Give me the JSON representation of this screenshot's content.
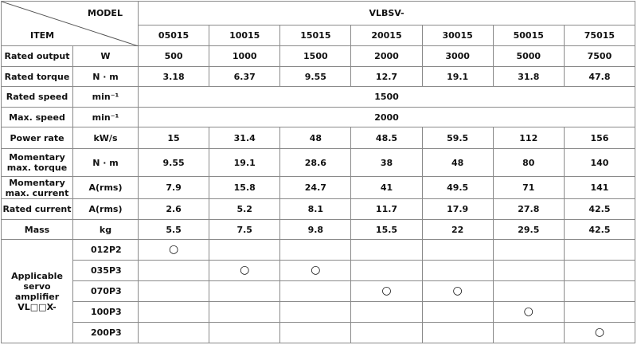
{
  "header": {
    "model_label": "MODEL",
    "item_label": "ITEM",
    "series": "VLBSV-",
    "models": [
      "05015",
      "10015",
      "15015",
      "20015",
      "30015",
      "50015",
      "75015"
    ]
  },
  "rows": [
    {
      "item": "Rated output",
      "unit": "W",
      "values": [
        "500",
        "1000",
        "1500",
        "2000",
        "3000",
        "5000",
        "7500"
      ]
    },
    {
      "item": "Rated torque",
      "unit": "N · m",
      "values": [
        "3.18",
        "6.37",
        "9.55",
        "12.7",
        "19.1",
        "31.8",
        "47.8"
      ]
    },
    {
      "item": "Rated speed",
      "unit": "min⁻¹",
      "value": "1500"
    },
    {
      "item": "Max. speed",
      "unit": "min⁻¹",
      "value": "2000"
    },
    {
      "item": "Power rate",
      "unit": "kW/s",
      "values": [
        "15",
        "31.4",
        "48",
        "48.5",
        "59.5",
        "112",
        "156"
      ]
    },
    {
      "item": "Momentary\nmax. torque",
      "unit": "N · m",
      "values": [
        "9.55",
        "19.1",
        "28.6",
        "38",
        "48",
        "80",
        "140"
      ]
    },
    {
      "item": "Momentary\nmax. current",
      "unit": "A(rms)",
      "values": [
        "7.9",
        "15.8",
        "24.7",
        "41",
        "49.5",
        "71",
        "141"
      ]
    },
    {
      "item": "Rated current",
      "unit": "A(rms)",
      "values": [
        "2.6",
        "5.2",
        "8.1",
        "11.7",
        "17.9",
        "27.8",
        "42.5"
      ]
    },
    {
      "item": "Mass",
      "unit": "kg",
      "values": [
        "5.5",
        "7.5",
        "9.8",
        "15.5",
        "22",
        "29.5",
        "42.5"
      ]
    }
  ],
  "amplifier": {
    "label": "Applicable\nservo\namplifier\nVL□□X-",
    "rows": [
      {
        "model": "012P2",
        "marks": [
          "○",
          null,
          null,
          null,
          null,
          null,
          null
        ]
      },
      {
        "model": "035P3",
        "marks": [
          null,
          "○",
          "○",
          null,
          null,
          null,
          null
        ]
      },
      {
        "model": "070P3",
        "marks": [
          null,
          null,
          null,
          "○",
          "○",
          null,
          null
        ]
      },
      {
        "model": "100P3",
        "marks": [
          null,
          null,
          null,
          null,
          null,
          "○",
          null
        ]
      },
      {
        "model": "200P3",
        "marks": [
          null,
          null,
          null,
          null,
          null,
          null,
          "○"
        ]
      }
    ]
  }
}
